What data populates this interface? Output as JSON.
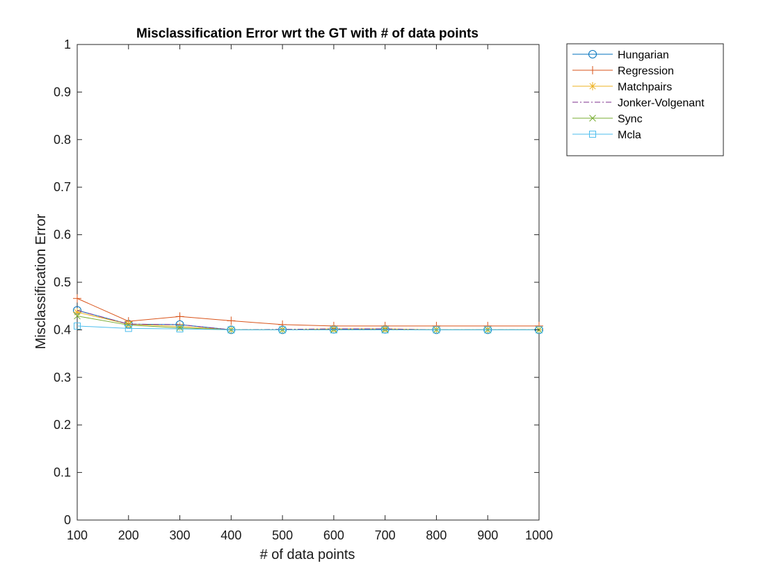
{
  "chart_data": {
    "type": "line",
    "title": "Misclassification Error wrt the GT with # of data points",
    "xlabel": "# of data points",
    "ylabel": "Misclassification Error",
    "x": [
      100,
      200,
      300,
      400,
      500,
      600,
      700,
      800,
      900,
      1000
    ],
    "xlim": [
      100,
      1000
    ],
    "ylim": [
      0,
      1
    ],
    "xticks": [
      "100",
      "200",
      "300",
      "400",
      "500",
      "600",
      "700",
      "800",
      "900",
      "1000"
    ],
    "yticks": [
      "0",
      "0.1",
      "0.2",
      "0.3",
      "0.4",
      "0.5",
      "0.6",
      "0.7",
      "0.8",
      "0.9",
      "1"
    ],
    "grid": false,
    "legend_position": "outside-top-right",
    "series": [
      {
        "name": "Hungarian",
        "color": "#0072BD",
        "marker": "circle",
        "linestyle": "solid",
        "values": [
          0.441,
          0.412,
          0.411,
          0.4,
          0.4,
          0.401,
          0.401,
          0.4,
          0.4,
          0.4
        ]
      },
      {
        "name": "Regression",
        "color": "#D95319",
        "marker": "plus",
        "linestyle": "solid",
        "values": [
          0.466,
          0.418,
          0.428,
          0.419,
          0.411,
          0.408,
          0.408,
          0.408,
          0.408,
          0.408
        ]
      },
      {
        "name": "Matchpairs",
        "color": "#EDB120",
        "marker": "asterisk",
        "linestyle": "solid",
        "values": [
          0.437,
          0.412,
          0.407,
          0.4,
          0.4,
          0.402,
          0.402,
          0.4,
          0.4,
          0.4
        ]
      },
      {
        "name": "Jonker-Volgenant",
        "color": "#7E2F8E",
        "marker": "none",
        "linestyle": "dashdot",
        "values": [
          0.441,
          0.412,
          0.411,
          0.4,
          0.401,
          0.402,
          0.402,
          0.4,
          0.4,
          0.4
        ]
      },
      {
        "name": "Sync",
        "color": "#77AC30",
        "marker": "x",
        "linestyle": "solid",
        "values": [
          0.429,
          0.41,
          0.404,
          0.4,
          0.4,
          0.4,
          0.4,
          0.4,
          0.4,
          0.4
        ]
      },
      {
        "name": "Mcla",
        "color": "#4DBEEE",
        "marker": "square",
        "linestyle": "solid",
        "values": [
          0.408,
          0.403,
          0.402,
          0.4,
          0.4,
          0.4,
          0.4,
          0.4,
          0.4,
          0.4
        ]
      }
    ]
  }
}
